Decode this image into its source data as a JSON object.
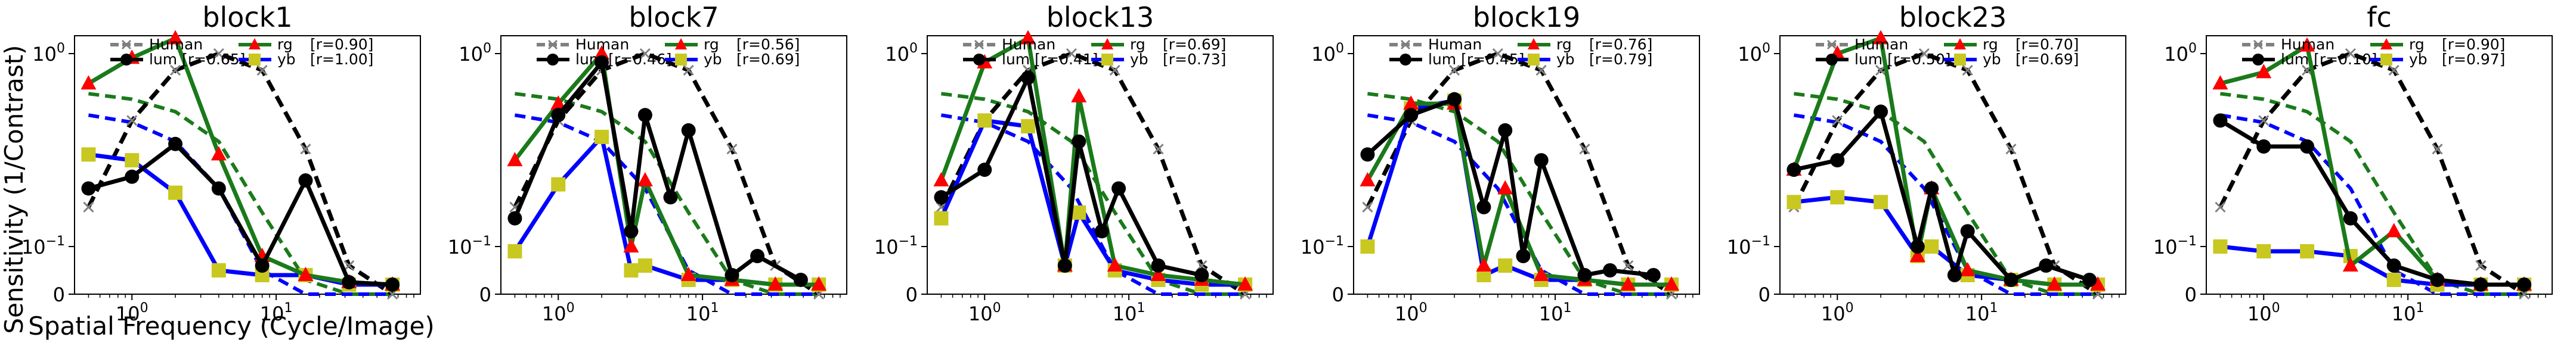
{
  "figure": {
    "ylabel": "Sensitivity (1/Contrast)",
    "xlabel": "Spatial Frequency (Cycle/Image)"
  },
  "chart_data": {
    "type": "line",
    "x_scale": "log",
    "y_scale": "symlog",
    "x": [
      0.5,
      1.0,
      2.0,
      4.0,
      8.0,
      16.0,
      32.0,
      64.0
    ],
    "xlim": [
      0.4,
      100
    ],
    "ylim": [
      0,
      2
    ],
    "x_ticks": [
      {
        "base": "10",
        "exp": "0",
        "value": 1
      },
      {
        "base": "10",
        "exp": "1",
        "value": 10
      }
    ],
    "y_ticks": [
      {
        "label": "0",
        "value": 0
      },
      {
        "base": "10",
        "exp": "−1",
        "value": 0.1
      },
      {
        "base": "10",
        "exp": "0",
        "value": 1
      }
    ],
    "colors": {
      "human": "#808080",
      "lum": "#000000",
      "rg": "#1a7a1a",
      "yb": "#0000ff",
      "rg_marker": "#ff0000",
      "yb_marker": "#c8c820"
    },
    "human_reference": {
      "lum": [
        0.16,
        0.45,
        0.82,
        1.0,
        0.82,
        0.32,
        0.06,
        0.0
      ],
      "rg": [
        0.62,
        0.58,
        0.5,
        0.35,
        0.15,
        0.03,
        0.0,
        0.0
      ],
      "yb": [
        0.48,
        0.44,
        0.35,
        0.2,
        0.05,
        0.0,
        0.0,
        0.0
      ]
    },
    "panels": [
      {
        "title": "block1",
        "legend": {
          "human": "Human",
          "lum": "lum [r=0.65]",
          "rg": "rg",
          "rg_r": "[r=0.90]",
          "yb": "yb",
          "yb_r": "[r=1.00]"
        },
        "lum": [
          0.2,
          0.23,
          0.34,
          0.2,
          0.06,
          0.22,
          0.025,
          0.02
        ],
        "rg": [
          0.7,
          0.95,
          1.2,
          0.3,
          0.08,
          0.04,
          0.025,
          0.02
        ],
        "yb": [
          0.3,
          0.28,
          0.19,
          0.05,
          0.04,
          0.04,
          0.02,
          0.02
        ]
      },
      {
        "title": "block7",
        "legend": {
          "human": "Human",
          "lum": "lum [r=0.46]",
          "rg": "rg",
          "rg_r": "[r=0.56]",
          "yb": "yb",
          "yb_r": "[r=0.69]"
        },
        "lum": [
          0.14,
          0.48,
          0.9,
          0.12,
          0.48,
          0.18,
          0.4,
          0.04,
          0.08,
          0.03
        ],
        "x_override": [
          0.5,
          1.0,
          2.0,
          3.2,
          4.0,
          6.0,
          8.0,
          16.0,
          24.0,
          48.0
        ],
        "rg": [
          0.28,
          0.55,
          1.0,
          0.1,
          0.22,
          0.04,
          0.03,
          0.02,
          0.02
        ],
        "rg_x": [
          0.5,
          1.0,
          2.0,
          3.2,
          4.0,
          8.0,
          16.0,
          32.0,
          64.0
        ],
        "yb": [
          0.09,
          0.21,
          0.37,
          0.05,
          0.06,
          0.03,
          0.03,
          0.02,
          0.02
        ],
        "yb_x": [
          0.5,
          1.0,
          2.0,
          3.2,
          4.0,
          8.0,
          16.0,
          32.0,
          64.0
        ]
      },
      {
        "title": "block13",
        "legend": {
          "human": "Human",
          "lum": "lum [r=0.41]",
          "rg": "rg",
          "rg_r": "[r=0.69]",
          "yb": "yb",
          "yb_r": "[r=0.73]"
        },
        "lum": [
          0.18,
          0.25,
          0.75,
          0.06,
          0.35,
          0.12,
          0.2,
          0.06,
          0.04
        ],
        "x_override": [
          0.5,
          1.0,
          2.0,
          3.6,
          4.5,
          6.5,
          8.5,
          16.0,
          32.0
        ],
        "rg": [
          0.22,
          0.9,
          1.2,
          0.06,
          0.6,
          0.06,
          0.04,
          0.03,
          0.02
        ],
        "rg_x": [
          0.5,
          1.0,
          2.0,
          3.6,
          4.5,
          8.0,
          16.0,
          32.0,
          64.0
        ],
        "yb": [
          0.14,
          0.45,
          0.42,
          0.06,
          0.15,
          0.05,
          0.03,
          0.02,
          0.02
        ],
        "yb_x": [
          0.5,
          1.0,
          2.0,
          3.6,
          4.5,
          8.0,
          16.0,
          32.0,
          64.0
        ]
      },
      {
        "title": "block19",
        "legend": {
          "human": "Human",
          "lum": "lum [r=0.45]",
          "rg": "rg",
          "rg_r": "[r=0.76]",
          "yb": "yb",
          "yb_r": "[r=0.79]"
        },
        "lum": [
          0.3,
          0.48,
          0.58,
          0.16,
          0.4,
          0.08,
          0.28,
          0.04,
          0.05,
          0.04
        ],
        "x_override": [
          0.5,
          1.0,
          2.0,
          3.2,
          4.5,
          6.0,
          8.0,
          16.0,
          24.0,
          48.0
        ],
        "rg": [
          0.22,
          0.55,
          0.55,
          0.06,
          0.2,
          0.04,
          0.03,
          0.02,
          0.02
        ],
        "rg_x": [
          0.5,
          1.0,
          2.0,
          3.2,
          4.5,
          8.0,
          16.0,
          32.0,
          64.0
        ],
        "yb": [
          0.1,
          0.52,
          0.57,
          0.04,
          0.06,
          0.03,
          0.03,
          0.02,
          0.02
        ],
        "yb_x": [
          0.5,
          1.0,
          2.0,
          3.2,
          4.5,
          8.0,
          16.0,
          32.0,
          64.0
        ]
      },
      {
        "title": "block23",
        "legend": {
          "human": "Human",
          "lum": "lum [r=0.50]",
          "rg": "rg",
          "rg_r": "[r=0.70]",
          "yb": "yb",
          "yb_r": "[r=0.69]"
        },
        "lum": [
          0.25,
          0.28,
          0.5,
          0.1,
          0.2,
          0.04,
          0.12,
          0.03,
          0.06,
          0.03
        ],
        "x_override": [
          0.5,
          1.0,
          2.0,
          3.6,
          4.5,
          6.5,
          8.0,
          16.0,
          28.0,
          56.0
        ],
        "rg": [
          0.25,
          1.0,
          1.2,
          0.08,
          0.2,
          0.05,
          0.03,
          0.02,
          0.02
        ],
        "rg_x": [
          0.5,
          1.0,
          2.0,
          3.6,
          4.5,
          8.0,
          16.0,
          32.0,
          64.0
        ],
        "yb": [
          0.17,
          0.18,
          0.17,
          0.08,
          0.1,
          0.04,
          0.03,
          0.02,
          0.02
        ],
        "yb_x": [
          0.5,
          1.0,
          2.0,
          3.6,
          4.5,
          8.0,
          16.0,
          32.0,
          64.0
        ]
      },
      {
        "title": "fc",
        "legend": {
          "human": "Human",
          "lum": "lum [r=0.10]",
          "rg": "rg",
          "rg_r": "[r=0.90]",
          "yb": "yb",
          "yb_r": "[r=0.97]"
        },
        "lum": [
          0.45,
          0.33,
          0.33,
          0.14,
          0.06,
          0.03,
          0.02,
          0.02
        ],
        "rg": [
          0.7,
          0.8,
          1.1,
          0.06,
          0.12,
          0.03,
          0.02,
          0.02
        ],
        "yb": [
          0.1,
          0.09,
          0.09,
          0.08,
          0.03,
          0.02,
          0.02,
          0.02
        ]
      }
    ]
  }
}
